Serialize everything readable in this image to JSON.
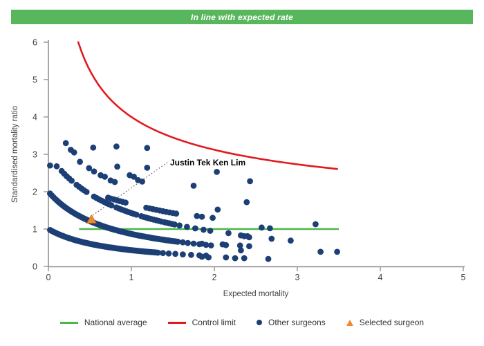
{
  "banner": {
    "text": "In line with expected rate",
    "bg_color": "#58b65c"
  },
  "chart_data": {
    "type": "scatter",
    "title": "In line with expected rate",
    "xlabel": "Expected mortality",
    "ylabel": "Standardised mortality ratio",
    "xlim": [
      0,
      5
    ],
    "ylim": [
      0,
      6
    ],
    "x_ticks": [
      0,
      1,
      2,
      3,
      4,
      5
    ],
    "y_ticks": [
      0,
      1,
      2,
      3,
      4,
      5,
      6
    ],
    "grid": false,
    "legend_position": "bottom",
    "axis_color": "#8c8c8c",
    "text_color": "#404040",
    "national_average": {
      "label": "National average",
      "y": 1,
      "x_start": 0.37,
      "x_end": 3.5,
      "color": "#4cb748"
    },
    "control_limit": {
      "label": "Control limit",
      "formula": "y = 1 + 3/sqrt(x)",
      "x_start": 0.36,
      "x_end": 3.5,
      "color": "#e3191d"
    },
    "other_surgeons": {
      "label": "Other surgeons",
      "color": "#1c3f76",
      "band_formula": "y = k / (1 + b*x)",
      "bands": [
        {
          "k": 1.0,
          "b": 1.3,
          "segments": [
            [
              0.02,
              1.32,
              0.02
            ]
          ],
          "tail": [
            1.38,
            1.45,
            1.53,
            1.62,
            1.72,
            1.82,
            1.9
          ]
        },
        {
          "k": 2.0,
          "b": 1.3,
          "segments": [
            [
              0.02,
              1.56,
              0.02
            ]
          ],
          "tail": [
            1.62,
            1.68,
            1.75,
            1.82,
            1.9,
            1.96
          ]
        },
        {
          "k": 3.0,
          "b": 1.1,
          "segments": [
            [
              0.16,
              0.3,
              0.03
            ],
            [
              0.34,
              0.46,
              0.03
            ],
            [
              0.55,
              0.76,
              0.03
            ],
            [
              0.82,
              1.06,
              0.03
            ],
            [
              1.12,
              1.36,
              0.03
            ],
            [
              1.4,
              1.52,
              0.03
            ]
          ],
          "tail": [
            1.58,
            1.67,
            1.77,
            1.87,
            1.95
          ]
        },
        {
          "k": 2.5,
          "b": 0.5,
          "segments": [
            [
              0.72,
              0.94,
              0.035
            ],
            [
              1.18,
              1.56,
              0.04
            ]
          ],
          "tail": []
        }
      ],
      "points": [
        [
          0.02,
          2.7
        ],
        [
          0.1,
          2.68
        ],
        [
          0.21,
          3.3
        ],
        [
          0.27,
          3.12
        ],
        [
          0.31,
          3.05
        ],
        [
          0.38,
          2.8
        ],
        [
          0.49,
          2.63
        ],
        [
          0.55,
          2.54
        ],
        [
          0.54,
          3.18
        ],
        [
          0.63,
          2.44
        ],
        [
          0.68,
          2.4
        ],
        [
          0.75,
          2.3
        ],
        [
          0.8,
          2.26
        ],
        [
          0.82,
          3.21
        ],
        [
          0.83,
          2.67
        ],
        [
          0.98,
          2.44
        ],
        [
          1.03,
          2.4
        ],
        [
          1.08,
          2.31
        ],
        [
          1.13,
          2.27
        ],
        [
          1.19,
          3.17
        ],
        [
          1.19,
          2.64
        ],
        [
          1.75,
          2.16
        ],
        [
          1.79,
          1.35
        ],
        [
          1.85,
          1.33
        ],
        [
          1.98,
          1.3
        ],
        [
          2.03,
          2.53
        ],
        [
          2.04,
          1.52
        ],
        [
          2.17,
          0.89
        ],
        [
          2.31,
          0.56
        ],
        [
          2.32,
          0.83
        ],
        [
          2.36,
          0.81
        ],
        [
          2.4,
          0.81
        ],
        [
          2.42,
          0.78
        ],
        [
          2.42,
          0.54
        ],
        [
          2.39,
          1.72
        ],
        [
          2.43,
          2.28
        ],
        [
          2.57,
          1.04
        ],
        [
          2.67,
          1.02
        ],
        [
          2.69,
          0.74
        ],
        [
          2.92,
          0.69
        ],
        [
          3.22,
          1.13
        ],
        [
          2.1,
          0.59
        ],
        [
          2.14,
          0.57
        ],
        [
          2.32,
          0.43
        ],
        [
          3.28,
          0.39
        ],
        [
          3.48,
          0.39
        ],
        [
          1.85,
          0.61
        ],
        [
          1.85,
          0.26
        ],
        [
          1.93,
          0.24
        ],
        [
          2.14,
          0.24
        ],
        [
          2.25,
          0.22
        ],
        [
          2.36,
          0.22
        ],
        [
          2.65,
          0.2
        ]
      ]
    },
    "selected_surgeon": {
      "label": "Selected surgeon",
      "annotation": "Justin Tek Ken Lim",
      "x": 0.52,
      "y": 1.26,
      "color": "#f0892c",
      "edge_color": "#b96a1b"
    }
  },
  "legend": {
    "items": [
      {
        "id": "national-average",
        "label": "National average",
        "type": "line",
        "color": "#4cb748"
      },
      {
        "id": "control-limit",
        "label": "Control limit",
        "type": "line",
        "color": "#e3191d"
      },
      {
        "id": "other-surgeons",
        "label": "Other surgeons",
        "type": "dot",
        "color": "#1c3f76"
      },
      {
        "id": "selected-surgeon",
        "label": "Selected surgeon",
        "type": "triangle",
        "color": "#f0892c"
      }
    ]
  }
}
